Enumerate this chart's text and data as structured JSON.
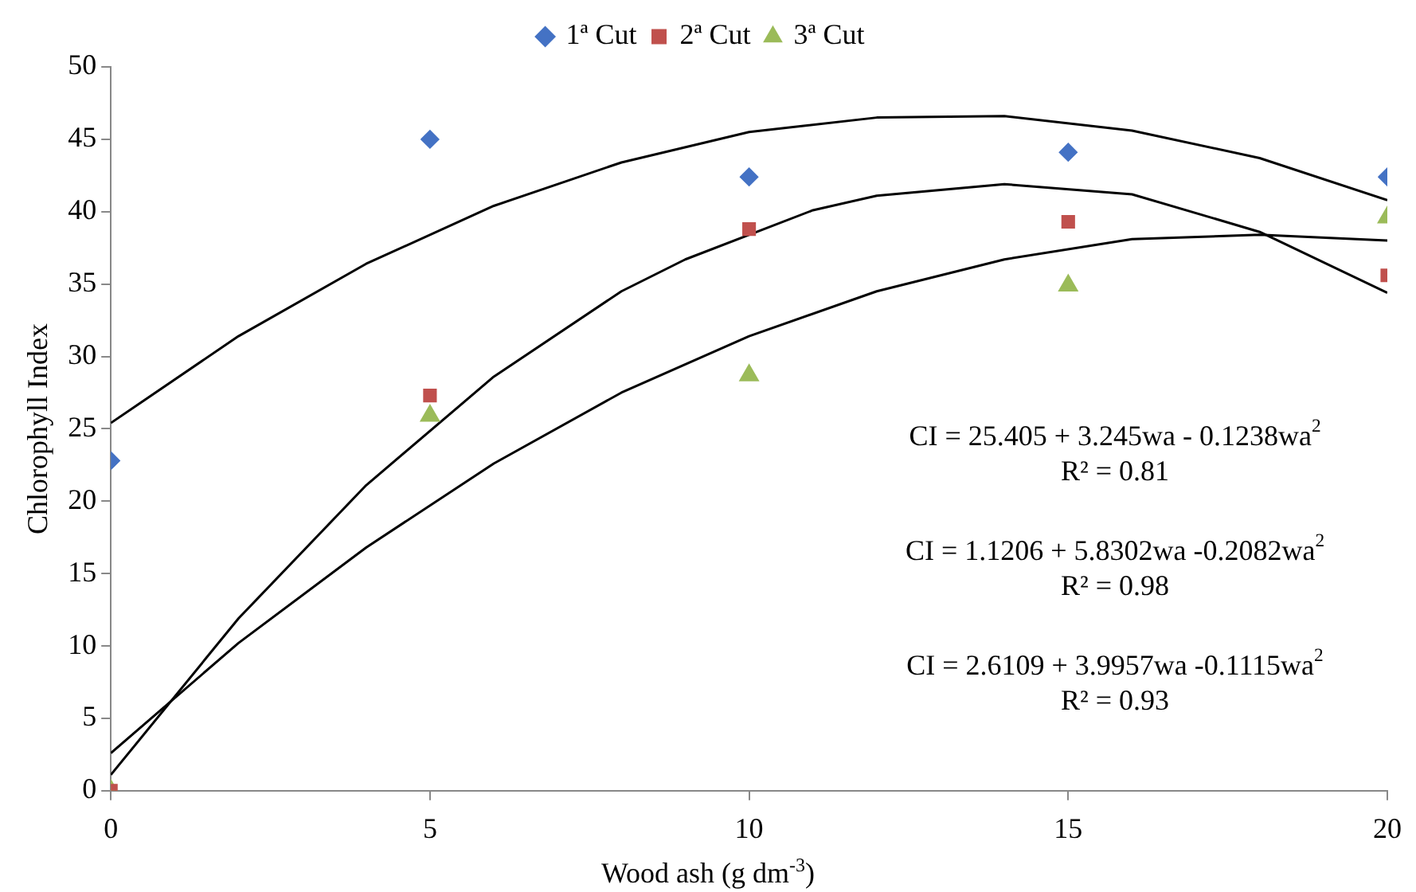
{
  "chart_data": {
    "type": "scatter",
    "xlabel": "Wood ash (g dm$^{-3}$)",
    "ylabel": "Chlorophyll Index",
    "xlim": [
      0,
      20
    ],
    "xticks": [
      0,
      5,
      10,
      15,
      20
    ],
    "ylim": [
      0,
      50
    ],
    "yticks": [
      0,
      5,
      10,
      15,
      20,
      25,
      30,
      35,
      40,
      45,
      50
    ],
    "grid": false,
    "legend": "top",
    "series": [
      {
        "name": "1ª Cut",
        "color": "#4472c4",
        "marker": "diamond",
        "x": [
          0,
          5,
          10,
          15,
          20
        ],
        "values": [
          22.8,
          45,
          42.4,
          44.1,
          42.4
        ]
      },
      {
        "name": "2ª Cut",
        "color": "#c0504d",
        "marker": "square",
        "x": [
          0,
          5,
          10,
          15,
          20
        ],
        "values": [
          0,
          27.3,
          38.8,
          39.3,
          35.6
        ]
      },
      {
        "name": "3ª Cut",
        "color": "#9bbb59",
        "marker": "triangle",
        "x": [
          0,
          5,
          10,
          15,
          20
        ],
        "values": [
          0,
          25.9,
          28.7,
          34.9,
          39.6
        ]
      },
      {
        "type": "line",
        "color": "#000000",
        "marker": "none",
        "x": [
          0,
          2,
          4,
          6,
          8,
          10,
          12,
          14,
          16,
          18,
          20
        ],
        "values": [
          25.4,
          31.4,
          36.4,
          40.4,
          43.4,
          45.5,
          46.5,
          46.6,
          45.6,
          43.7,
          40.8
        ]
      },
      {
        "type": "line",
        "color": "#000000",
        "marker": "none",
        "x": [
          0,
          2,
          4,
          6,
          8,
          9,
          11,
          12,
          14,
          16,
          18,
          20
        ],
        "values": [
          1.1,
          11.9,
          21.1,
          28.6,
          34.5,
          36.7,
          40.1,
          41.1,
          41.9,
          41.2,
          38.6,
          34.4
        ]
      },
      {
        "type": "line",
        "color": "#000000",
        "marker": "none",
        "x": [
          0,
          2,
          4,
          6,
          8,
          10,
          12,
          14,
          16,
          18,
          20
        ],
        "values": [
          2.6,
          10.2,
          16.8,
          22.6,
          27.5,
          31.4,
          34.5,
          36.7,
          38.1,
          38.4,
          38.0
        ]
      }
    ],
    "annotations": [
      "CI = 25.405 + 3.245wa - 0.1238wa$^{2}$",
      "R² = 0.81",
      "CI = 1.1206 + 5.8302wa -0.2082wa$^{2}$",
      "R² = 0.98",
      "CI = 2.6109 + 3.9957wa -0.1115wa$^{2}$",
      "R² = 0.93"
    ]
  }
}
